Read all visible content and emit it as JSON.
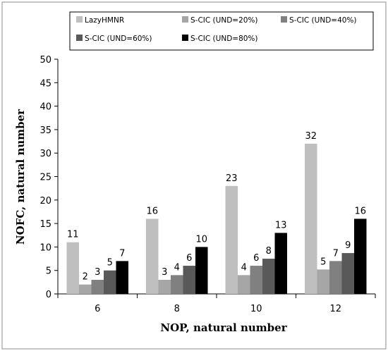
{
  "chart_data": {
    "type": "bar",
    "categories": [
      "6",
      "8",
      "10",
      "12"
    ],
    "series": [
      {
        "name": "LazyHMNR",
        "values": [
          11,
          16,
          23,
          32
        ],
        "color": "#bfbfbf"
      },
      {
        "name": "S-CIC (UND=20%)",
        "values": [
          2,
          3,
          4,
          5
        ],
        "color": "#a6a6a6"
      },
      {
        "name": "S-CIC (UND=40%)",
        "values": [
          3,
          4,
          6,
          7
        ],
        "color": "#808080"
      },
      {
        "name": "S-CIC (UND=60%)",
        "values": [
          5,
          6,
          8,
          9
        ],
        "color": "#595959"
      },
      {
        "name": "S-CIC (UND=80%)",
        "values": [
          7,
          10,
          13,
          16
        ],
        "color": "#000000"
      }
    ],
    "plotted_values": [
      [
        11,
        16,
        23,
        32
      ],
      [
        2,
        3,
        4,
        5.2
      ],
      [
        3,
        4,
        6,
        7
      ],
      [
        5,
        6,
        7.5,
        8.7
      ],
      [
        7,
        10,
        13,
        16
      ]
    ],
    "xlabel": "NOP, natural number",
    "ylabel": "NOFC, natural number",
    "ylim": [
      0,
      50
    ],
    "yticks": [
      0,
      5,
      10,
      15,
      20,
      25,
      30,
      35,
      40,
      45,
      50
    ],
    "grid": false,
    "legend_position": "top"
  }
}
